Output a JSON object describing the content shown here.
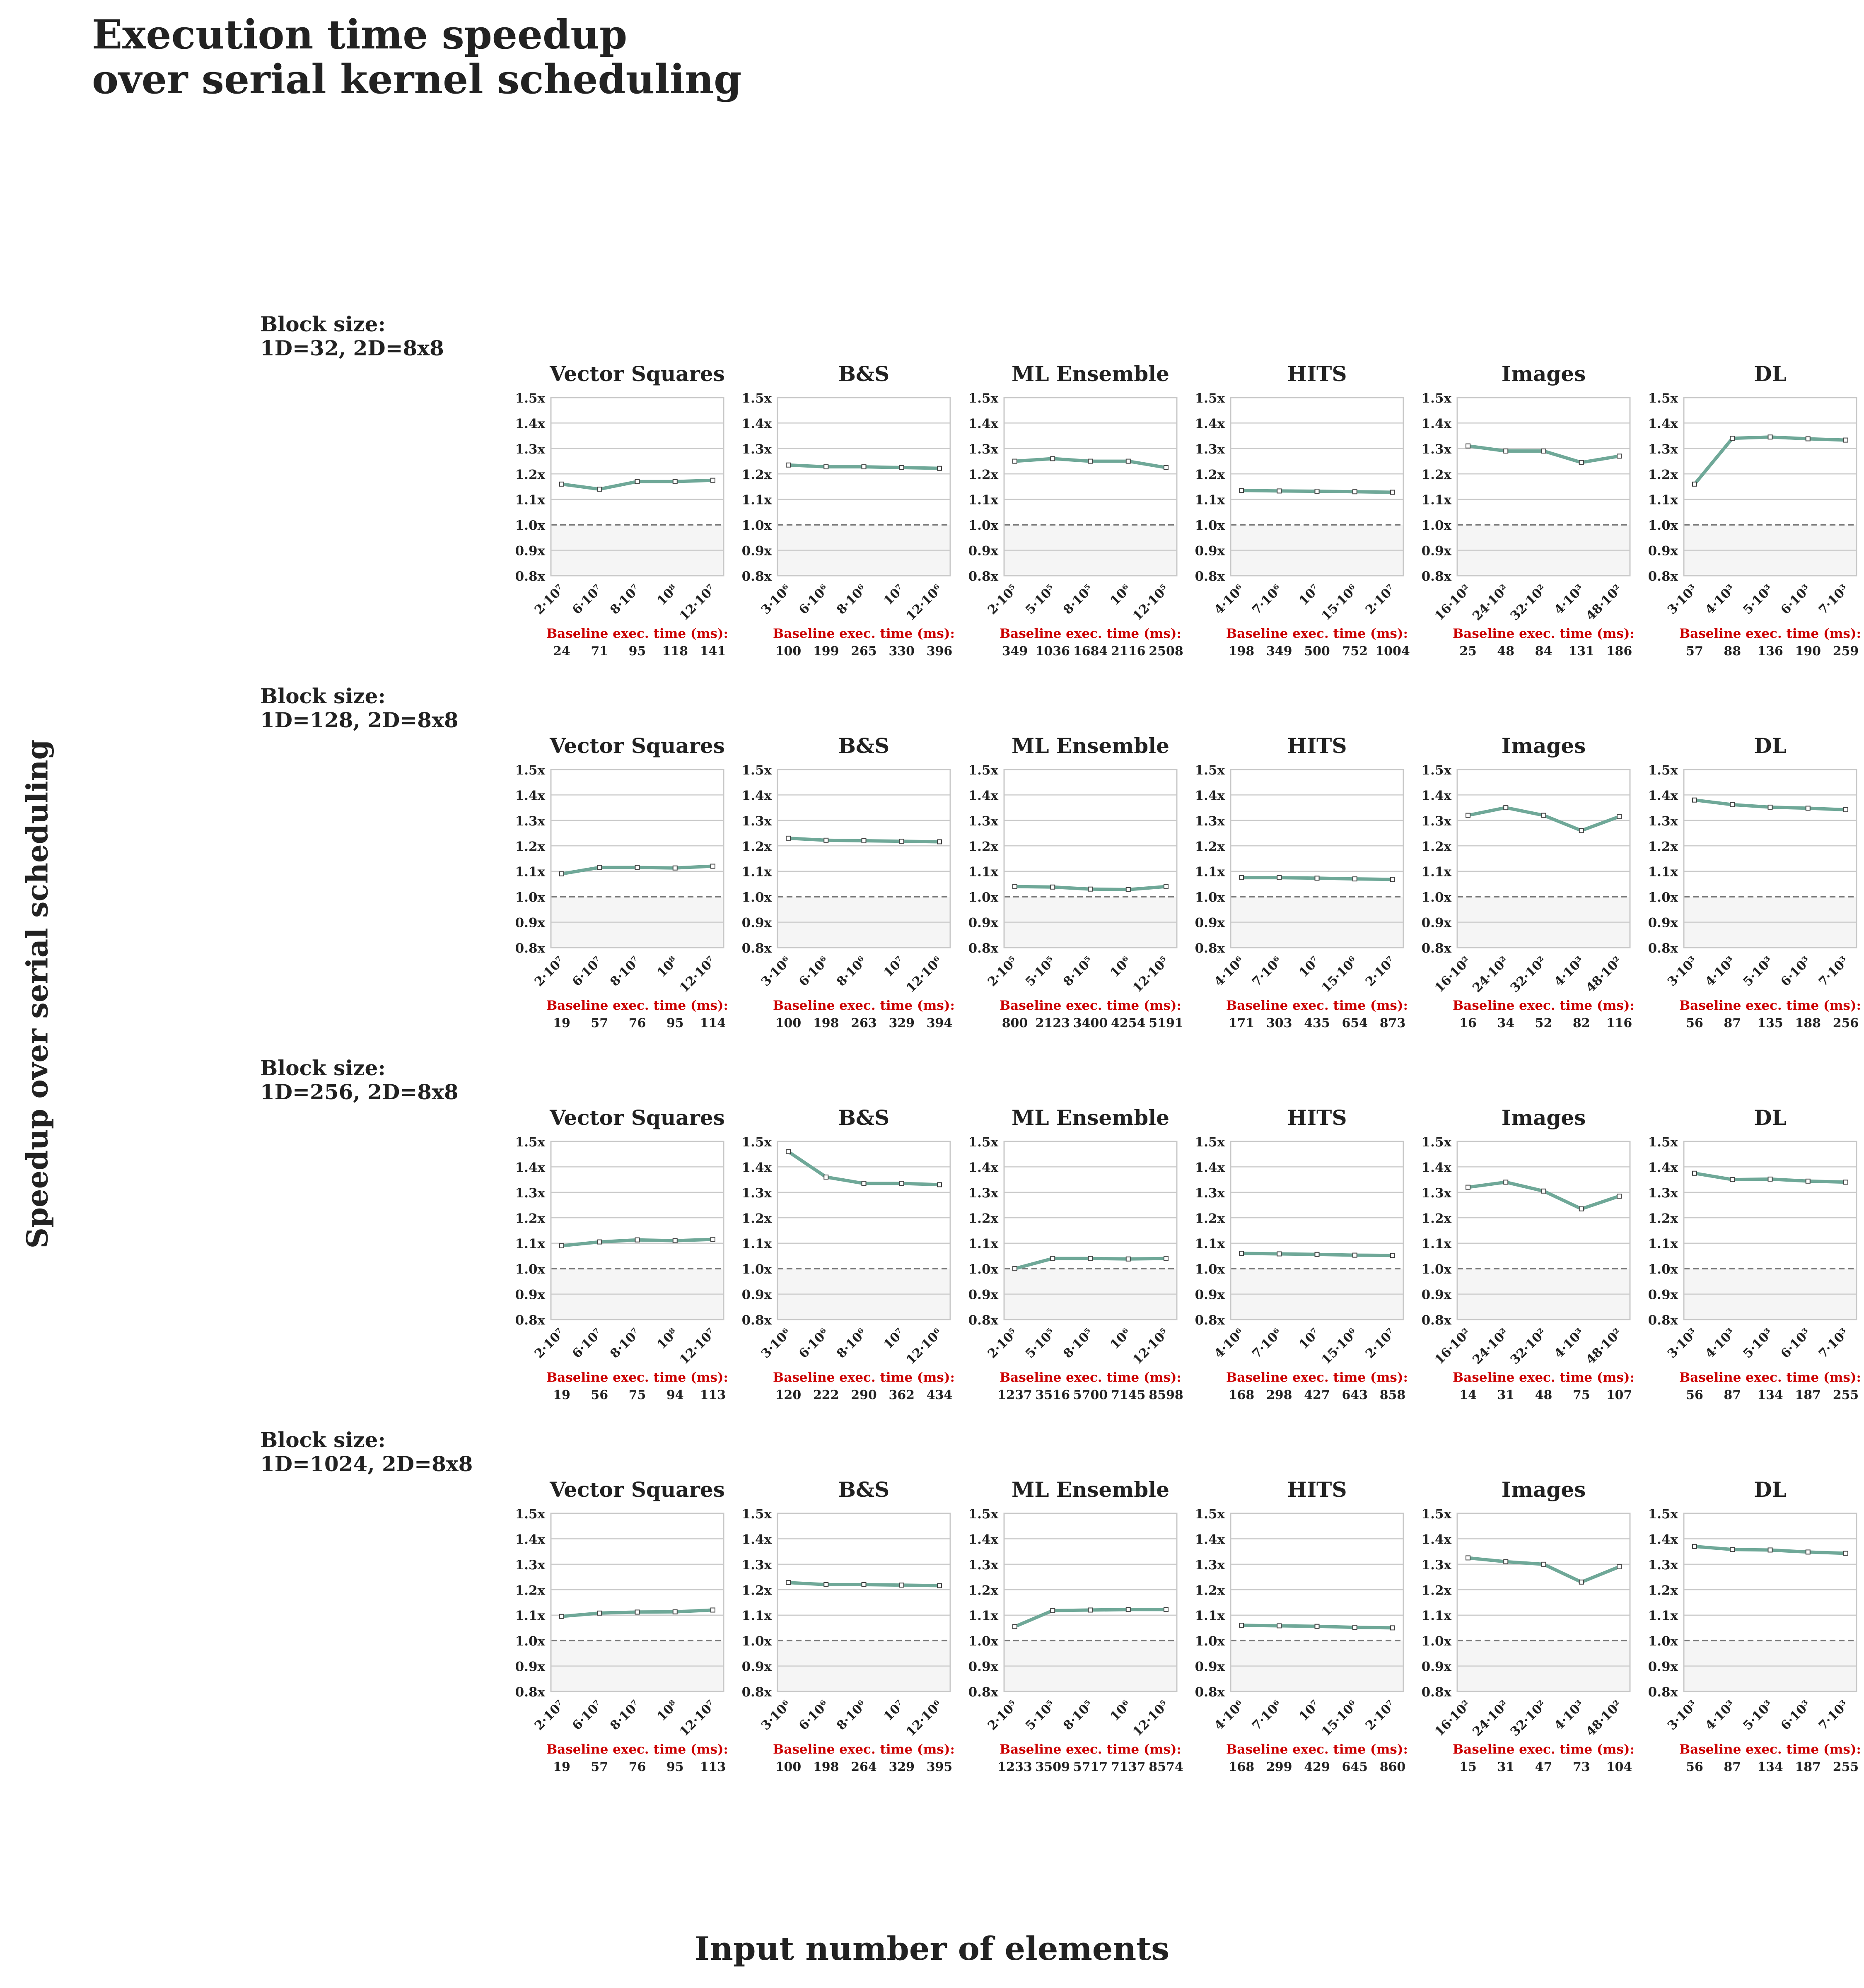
{
  "title": "Execution time speedup\nover serial kernel scheduling",
  "ylabel": "Speedup over serial scheduling",
  "xlabel": "Input number of elements",
  "baseline_label": "Baseline exec. time (ms):",
  "colors": {
    "line": "#6fa898",
    "reference": "#777777",
    "baseline_label": "#cc0000",
    "grid": "#cccccc",
    "below_one_shade": "#f5f5f5"
  },
  "y_ticks": [
    "0.8x",
    "0.9x",
    "1.0x",
    "1.1x",
    "1.2x",
    "1.3x",
    "1.4x",
    "1.5x"
  ],
  "chart_data": {
    "type": "line",
    "ylim": [
      0.8,
      1.5
    ],
    "reference_line": 1.0,
    "grid": true,
    "rows": [
      {
        "label": "Block size:\n1D=32, 2D=8x8",
        "panels": [
          {
            "title": "Vector Squares",
            "x": [
              "2·10⁷",
              "6·10⁷",
              "8·10⁷",
              "10⁸",
              "12·10⁷"
            ],
            "values": [
              1.16,
              1.14,
              1.17,
              1.17,
              1.175
            ],
            "baseline": [
              "24",
              "71",
              "95",
              "118",
              "141"
            ]
          },
          {
            "title": "B&S",
            "x": [
              "3·10⁶",
              "6·10⁶",
              "8·10⁶",
              "10⁷",
              "12·10⁶"
            ],
            "values": [
              1.235,
              1.228,
              1.228,
              1.225,
              1.222
            ],
            "baseline": [
              "100",
              "199",
              "265",
              "330",
              "396"
            ]
          },
          {
            "title": "ML Ensemble",
            "x": [
              "2·10⁵",
              "5·10⁵",
              "8·10⁵",
              "10⁶",
              "12·10⁵"
            ],
            "values": [
              1.25,
              1.26,
              1.25,
              1.25,
              1.225
            ],
            "baseline": [
              "349",
              "1036",
              "1684",
              "2116",
              "2508"
            ]
          },
          {
            "title": "HITS",
            "x": [
              "4·10⁶",
              "7·10⁶",
              "10⁷",
              "15·10⁶",
              "2·10⁷"
            ],
            "values": [
              1.135,
              1.133,
              1.132,
              1.13,
              1.128
            ],
            "baseline": [
              "198",
              "349",
              "500",
              "752",
              "1004"
            ]
          },
          {
            "title": "Images",
            "x": [
              "16·10²",
              "24·10²",
              "32·10²",
              "4·10³",
              "48·10²"
            ],
            "values": [
              1.31,
              1.29,
              1.29,
              1.245,
              1.27
            ],
            "baseline": [
              "25",
              "48",
              "84",
              "131",
              "186"
            ]
          },
          {
            "title": "DL",
            "x": [
              "3·10³",
              "4·10³",
              "5·10³",
              "6·10³",
              "7·10³"
            ],
            "values": [
              1.16,
              1.34,
              1.345,
              1.338,
              1.333
            ],
            "baseline": [
              "57",
              "88",
              "136",
              "190",
              "259"
            ]
          }
        ]
      },
      {
        "label": "Block size:\n1D=128, 2D=8x8",
        "panels": [
          {
            "title": "Vector Squares",
            "x": [
              "2·10⁷",
              "6·10⁷",
              "8·10⁷",
              "10⁸",
              "12·10⁷"
            ],
            "values": [
              1.09,
              1.115,
              1.115,
              1.113,
              1.12
            ],
            "baseline": [
              "19",
              "57",
              "76",
              "95",
              "114"
            ]
          },
          {
            "title": "B&S",
            "x": [
              "3·10⁶",
              "6·10⁶",
              "8·10⁶",
              "10⁷",
              "12·10⁶"
            ],
            "values": [
              1.23,
              1.222,
              1.22,
              1.218,
              1.216
            ],
            "baseline": [
              "100",
              "198",
              "263",
              "329",
              "394"
            ]
          },
          {
            "title": "ML Ensemble",
            "x": [
              "2·10⁵",
              "5·10⁵",
              "8·10⁵",
              "10⁶",
              "12·10⁵"
            ],
            "values": [
              1.04,
              1.038,
              1.03,
              1.028,
              1.04
            ],
            "baseline": [
              "800",
              "2123",
              "3400",
              "4254",
              "5191"
            ]
          },
          {
            "title": "HITS",
            "x": [
              "4·10⁶",
              "7·10⁶",
              "10⁷",
              "15·10⁶",
              "2·10⁷"
            ],
            "values": [
              1.075,
              1.075,
              1.073,
              1.07,
              1.068
            ],
            "baseline": [
              "171",
              "303",
              "435",
              "654",
              "873"
            ]
          },
          {
            "title": "Images",
            "x": [
              "16·10²",
              "24·10²",
              "32·10²",
              "4·10³",
              "48·10²"
            ],
            "values": [
              1.32,
              1.35,
              1.32,
              1.26,
              1.315
            ],
            "baseline": [
              "16",
              "34",
              "52",
              "82",
              "116"
            ]
          },
          {
            "title": "DL",
            "x": [
              "3·10³",
              "4·10³",
              "5·10³",
              "6·10³",
              "7·10³"
            ],
            "values": [
              1.38,
              1.362,
              1.352,
              1.348,
              1.342
            ],
            "baseline": [
              "56",
              "87",
              "135",
              "188",
              "256"
            ]
          }
        ]
      },
      {
        "label": "Block size:\n1D=256, 2D=8x8",
        "panels": [
          {
            "title": "Vector Squares",
            "x": [
              "2·10⁷",
              "6·10⁷",
              "8·10⁷",
              "10⁸",
              "12·10⁷"
            ],
            "values": [
              1.09,
              1.105,
              1.113,
              1.11,
              1.115
            ],
            "baseline": [
              "19",
              "56",
              "75",
              "94",
              "113"
            ]
          },
          {
            "title": "B&S",
            "x": [
              "3·10⁶",
              "6·10⁶",
              "8·10⁶",
              "10⁷",
              "12·10⁶"
            ],
            "values": [
              1.46,
              1.36,
              1.335,
              1.335,
              1.33
            ],
            "baseline": [
              "120",
              "222",
              "290",
              "362",
              "434"
            ]
          },
          {
            "title": "ML Ensemble",
            "x": [
              "2·10⁵",
              "5·10⁵",
              "8·10⁵",
              "10⁶",
              "12·10⁵"
            ],
            "values": [
              1.0,
              1.04,
              1.04,
              1.038,
              1.04
            ],
            "baseline": [
              "1237",
              "3516",
              "5700",
              "7145",
              "8598"
            ]
          },
          {
            "title": "HITS",
            "x": [
              "4·10⁶",
              "7·10⁶",
              "10⁷",
              "15·10⁶",
              "2·10⁷"
            ],
            "values": [
              1.06,
              1.058,
              1.056,
              1.053,
              1.052
            ],
            "baseline": [
              "168",
              "298",
              "427",
              "643",
              "858"
            ]
          },
          {
            "title": "Images",
            "x": [
              "16·10²",
              "24·10²",
              "32·10²",
              "4·10³",
              "48·10²"
            ],
            "values": [
              1.32,
              1.34,
              1.305,
              1.235,
              1.285
            ],
            "baseline": [
              "14",
              "31",
              "48",
              "75",
              "107"
            ]
          },
          {
            "title": "DL",
            "x": [
              "3·10³",
              "4·10³",
              "5·10³",
              "6·10³",
              "7·10³"
            ],
            "values": [
              1.375,
              1.35,
              1.352,
              1.344,
              1.34
            ],
            "baseline": [
              "56",
              "87",
              "134",
              "187",
              "255"
            ]
          }
        ]
      },
      {
        "label": "Block size:\n1D=1024, 2D=8x8",
        "panels": [
          {
            "title": "Vector Squares",
            "x": [
              "2·10⁷",
              "6·10⁷",
              "8·10⁷",
              "10⁸",
              "12·10⁷"
            ],
            "values": [
              1.095,
              1.108,
              1.112,
              1.113,
              1.12
            ],
            "baseline": [
              "19",
              "57",
              "76",
              "95",
              "113"
            ]
          },
          {
            "title": "B&S",
            "x": [
              "3·10⁶",
              "6·10⁶",
              "8·10⁶",
              "10⁷",
              "12·10⁶"
            ],
            "values": [
              1.228,
              1.22,
              1.22,
              1.218,
              1.216
            ],
            "baseline": [
              "100",
              "198",
              "264",
              "329",
              "395"
            ]
          },
          {
            "title": "ML Ensemble",
            "x": [
              "2·10⁵",
              "5·10⁵",
              "8·10⁵",
              "10⁶",
              "12·10⁵"
            ],
            "values": [
              1.055,
              1.118,
              1.12,
              1.122,
              1.122
            ],
            "baseline": [
              "1233",
              "3509",
              "5717",
              "7137",
              "8574"
            ]
          },
          {
            "title": "HITS",
            "x": [
              "4·10⁶",
              "7·10⁶",
              "10⁷",
              "15·10⁶",
              "2·10⁷"
            ],
            "values": [
              1.06,
              1.058,
              1.056,
              1.052,
              1.05
            ],
            "baseline": [
              "168",
              "299",
              "429",
              "645",
              "860"
            ]
          },
          {
            "title": "Images",
            "x": [
              "16·10²",
              "24·10²",
              "32·10²",
              "4·10³",
              "48·10²"
            ],
            "values": [
              1.325,
              1.31,
              1.3,
              1.23,
              1.29
            ],
            "baseline": [
              "15",
              "31",
              "47",
              "73",
              "104"
            ]
          },
          {
            "title": "DL",
            "x": [
              "3·10³",
              "4·10³",
              "5·10³",
              "6·10³",
              "7·10³"
            ],
            "values": [
              1.37,
              1.358,
              1.356,
              1.348,
              1.343
            ],
            "baseline": [
              "56",
              "87",
              "134",
              "187",
              "255"
            ]
          }
        ]
      }
    ]
  }
}
